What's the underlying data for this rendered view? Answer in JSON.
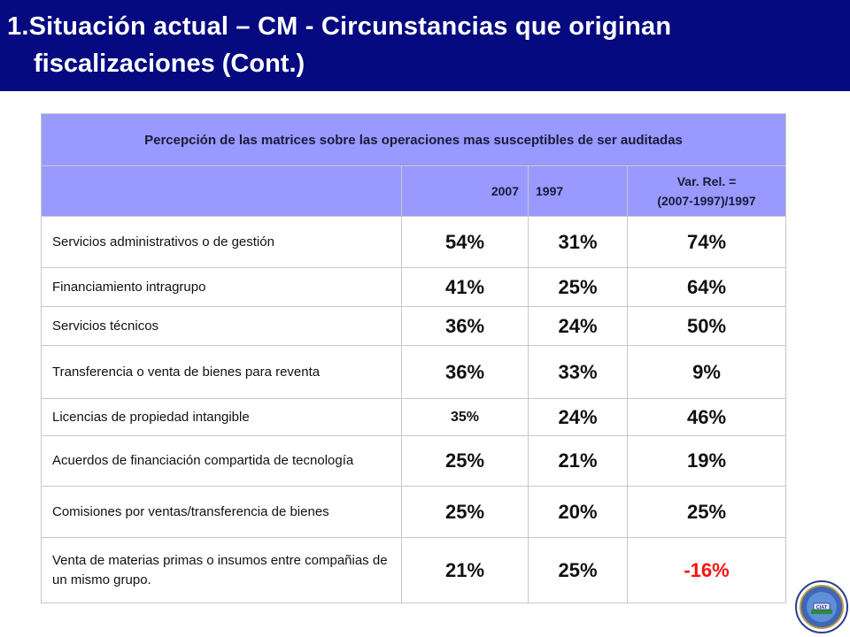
{
  "title": {
    "line1": "1.Situación actual – CM - Circunstancias que originan",
    "line2": "fiscalizaciones (Cont.)"
  },
  "table": {
    "title": "Percepción de las matrices sobre las operaciones mas susceptibles de ser auditadas",
    "col_2007": "2007",
    "col_1997": "1997",
    "col_var_line1": "Var. Rel. =",
    "col_var_line2": "(2007-1997)/1997",
    "rows": [
      {
        "label": "Servicios administrativos o de gestión",
        "v2007": "54%",
        "v1997": "31%",
        "var": "74%"
      },
      {
        "label": "Financiamiento intragrupo",
        "v2007": "41%",
        "v1997": "25%",
        "var": "64%"
      },
      {
        "label": "Servicios técnicos",
        "v2007": "36%",
        "v1997": "24%",
        "var": "50%"
      },
      {
        "label": "Transferencia o venta de bienes para reventa",
        "v2007": "36%",
        "v1997": "33%",
        "var": "9%"
      },
      {
        "label": "Licencias de propiedad intangible",
        "v2007": "35%",
        "v1997": "24%",
        "var": "46%"
      },
      {
        "label": "Acuerdos de financiación compartida de tecnología",
        "v2007": "25%",
        "v1997": "21%",
        "var": "19%"
      },
      {
        "label": "Comisiones por ventas/transferencia de bienes",
        "v2007": "25%",
        "v1997": "20%",
        "var": "25%"
      },
      {
        "label": "Venta de materias primas o insumos entre compañias de un mismo grupo.",
        "v2007": "21%",
        "v1997": "25%",
        "var": "-16%"
      }
    ]
  },
  "colors": {
    "title_bg": "#050a80",
    "header_bg": "#9999ff",
    "negative": "#ff1010"
  },
  "logo": {
    "icon": "ciat-seal-icon",
    "text": "CIAT"
  }
}
